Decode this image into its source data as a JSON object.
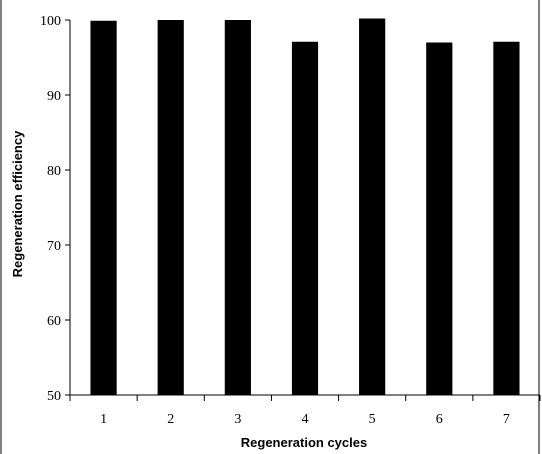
{
  "chart_data": {
    "type": "bar",
    "title": "",
    "xlabel": "Regeneration cycles",
    "ylabel": "Regeneration efficiency",
    "categories": [
      "1",
      "2",
      "3",
      "4",
      "5",
      "6",
      "7"
    ],
    "values": [
      99.9,
      100.0,
      100.0,
      97.1,
      100.2,
      97.0,
      97.1
    ],
    "ylim": [
      50,
      100
    ],
    "yticks": [
      "50",
      "60",
      "70",
      "80",
      "90",
      "100"
    ],
    "bar_color": "#000000",
    "grid": false,
    "legend": "none"
  }
}
